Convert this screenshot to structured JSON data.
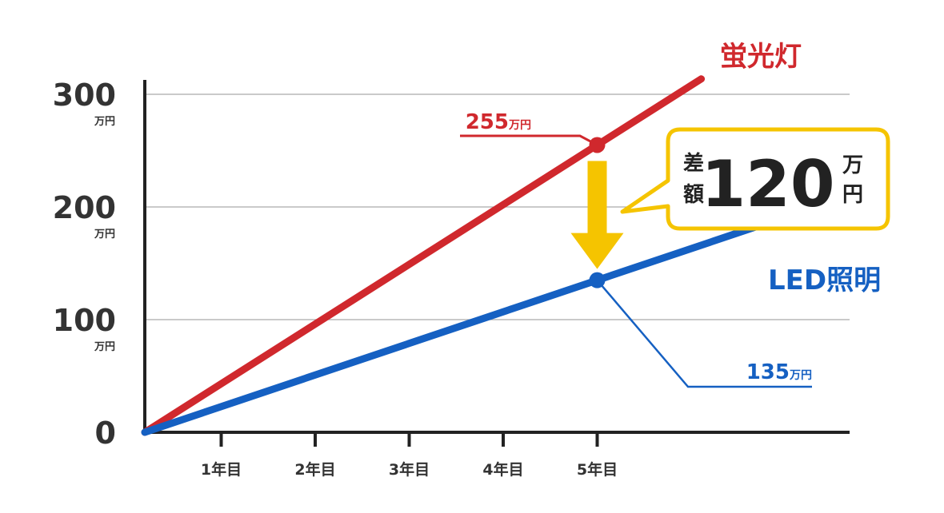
{
  "chart_data": {
    "type": "line",
    "categories": [
      "1年目",
      "2年目",
      "3年目",
      "4年目",
      "5年目"
    ],
    "x": [
      0,
      1,
      2,
      3,
      4,
      5
    ],
    "series": [
      {
        "name": "蛍光灯",
        "color": "#d0282d",
        "values": [
          0,
          51,
          102,
          153,
          204,
          255
        ]
      },
      {
        "name": "LED照明",
        "color": "#1560c2",
        "values": [
          0,
          27,
          54,
          81,
          108,
          135
        ]
      }
    ],
    "yticks": [
      {
        "value": 0,
        "label": "0",
        "unit": ""
      },
      {
        "value": 100,
        "label": "100",
        "unit": "万円"
      },
      {
        "value": 200,
        "label": "200",
        "unit": "万円"
      },
      {
        "value": 300,
        "label": "300",
        "unit": "万円"
      }
    ],
    "ylim": [
      0,
      300
    ],
    "xlim": [
      0,
      7.5
    ],
    "grid": true,
    "annotations": {
      "fluorescent_value": {
        "value": "255",
        "unit": "万円",
        "x": 5,
        "y": 255
      },
      "led_value": {
        "value": "135",
        "unit": "万円",
        "x": 5,
        "y": 135
      },
      "difference": {
        "label_line1": "差",
        "label_line2": "額",
        "value": "120",
        "unit_line1": "万",
        "unit_line2": "円"
      }
    },
    "colors": {
      "arrow": "#f5c400",
      "callout_border": "#f5c400",
      "axis": "#222222",
      "grid": "#aaaaaa"
    }
  }
}
